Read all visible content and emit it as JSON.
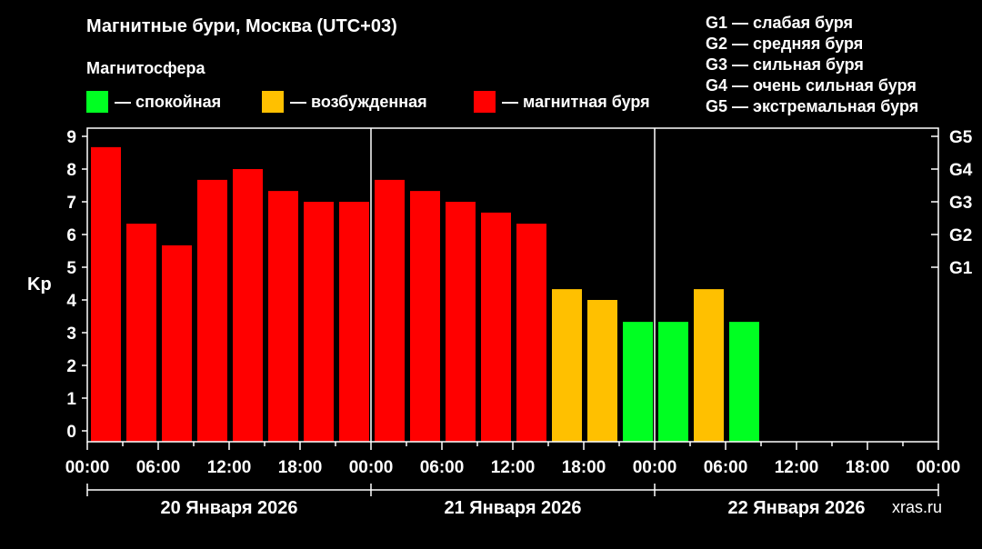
{
  "chart_data": {
    "type": "bar",
    "title": "Магнитные бури, Москва (UTC+03)",
    "subtitle": "Магнитосфера",
    "ylabel": "Kp",
    "ylim": [
      0,
      9
    ],
    "yticks": [
      "0",
      "1",
      "2",
      "3",
      "4",
      "5",
      "6",
      "7",
      "8",
      "9"
    ],
    "right_ticks": [
      {
        "label": "G1",
        "kp": 5
      },
      {
        "label": "G2",
        "kp": 6
      },
      {
        "label": "G3",
        "kp": 7
      },
      {
        "label": "G4",
        "kp": 8
      },
      {
        "label": "G5",
        "kp": 9
      }
    ],
    "legend": [
      {
        "label": "— спокойная",
        "color": "#00ff22"
      },
      {
        "label": "— возбужденная",
        "color": "#ffc000"
      },
      {
        "label": "— магнитная буря",
        "color": "#ff0000"
      }
    ],
    "g_scale": [
      "G1 — слабая буря",
      "G2 — средняя буря",
      "G3 — сильная буря",
      "G4 — очень сильная буря",
      "G5 — экстремальная буря"
    ],
    "x_tick_labels": [
      "00:00",
      "06:00",
      "12:00",
      "18:00",
      "00:00",
      "06:00",
      "12:00",
      "18:00",
      "00:00",
      "06:00",
      "12:00",
      "18:00",
      "00:00"
    ],
    "days": [
      "20 Января 2026",
      "21 Января 2026",
      "22 Января 2026"
    ],
    "interval_hours": 3,
    "values": [
      8.67,
      6.33,
      5.67,
      7.67,
      8.0,
      7.33,
      7.0,
      7.0,
      7.67,
      7.33,
      7.0,
      6.67,
      6.33,
      4.33,
      4.0,
      3.33,
      3.33,
      4.33,
      3.33
    ],
    "levels": [
      "storm",
      "storm",
      "storm",
      "storm",
      "storm",
      "storm",
      "storm",
      "storm",
      "storm",
      "storm",
      "storm",
      "storm",
      "storm",
      "active",
      "active",
      "quiet",
      "quiet",
      "active",
      "quiet"
    ],
    "level_colors": {
      "quiet": "#00ff22",
      "active": "#ffc000",
      "storm": "#ff0000"
    }
  },
  "watermark": "xras.ru"
}
